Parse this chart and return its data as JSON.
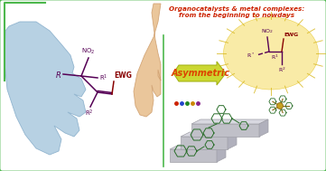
{
  "title_line1": "Organocatalysts & metal complexes:",
  "title_line2": "from the beginning to nowdays",
  "arrow_label": "Asymmetric",
  "border_color": "#4db84d",
  "background_color": "#ffffff",
  "title_color": "#cc2200",
  "arrow_fill": "#c8d420",
  "arrow_label_color": "#dd4400",
  "mol_color": "#550055",
  "ewg_color": "#880000",
  "glow_color": "#f8e898",
  "glow_edge": "#e8c830",
  "stair_color": "#c0c0c8",
  "stair_edge": "#a0a0a8",
  "cat_color": "#2a6e2a",
  "left_hand_color": "#b0cce0",
  "left_hand_edge": "#8ab0cc",
  "right_hand_color": "#e8c090",
  "right_hand_edge": "#d0a070",
  "divider_color": "#4db84d",
  "figsize": [
    3.61,
    1.89
  ],
  "dpi": 100
}
